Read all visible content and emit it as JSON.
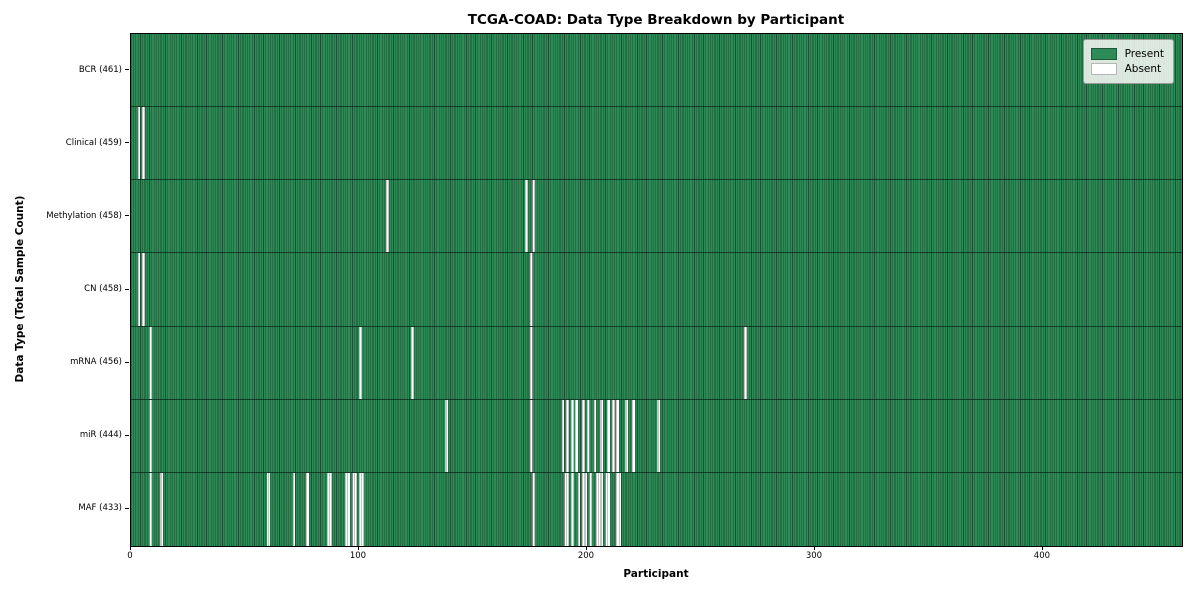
{
  "title": "TCGA-COAD: Data Type Breakdown by Participant",
  "chart_data": {
    "type": "heatmap",
    "title": "TCGA-COAD: Data Type Breakdown by Participant",
    "xlabel": "Participant",
    "ylabel": "Data Type (Total Sample Count)",
    "x_ticks": [
      0,
      100,
      200,
      300,
      400
    ],
    "x_range": [
      0,
      461
    ],
    "n_participants": 461,
    "grid": false,
    "legend_position": "upper right",
    "legend": [
      {
        "label": "Present",
        "color": "#2e8b57"
      },
      {
        "label": "Absent",
        "color": "#ffffff"
      }
    ],
    "rows": [
      {
        "name": "BCR",
        "label": "BCR (461)",
        "total": 461,
        "absent": []
      },
      {
        "name": "Clinical",
        "label": "Clinical (459)",
        "total": 459,
        "absent": [
          3,
          5
        ]
      },
      {
        "name": "Methylation",
        "label": "Methylation (458)",
        "total": 458,
        "absent": [
          112,
          173,
          176
        ]
      },
      {
        "name": "CN",
        "label": "CN (458)",
        "total": 458,
        "absent": [
          3,
          5,
          175
        ]
      },
      {
        "name": "mRNA",
        "label": "mRNA (456)",
        "total": 456,
        "absent": [
          8,
          100,
          123,
          175,
          269
        ]
      },
      {
        "name": "miR",
        "label": "miR (444)",
        "total": 444,
        "absent": [
          8,
          138,
          175,
          189,
          191,
          193,
          195,
          198,
          200,
          203,
          206,
          209,
          211,
          213,
          217,
          220,
          231
        ]
      },
      {
        "name": "MAF",
        "label": "MAF (433)",
        "total": 433,
        "absent": [
          8,
          13,
          60,
          71,
          77,
          86,
          87,
          94,
          95,
          97,
          98,
          100,
          101,
          176,
          190,
          191,
          193,
          196,
          198,
          199,
          201,
          204,
          205,
          206,
          208,
          209,
          213,
          214
        ]
      }
    ],
    "colors": {
      "present": "#2e8b57",
      "cell_edge": "#0a2a16",
      "absent": "#ffffff"
    }
  }
}
